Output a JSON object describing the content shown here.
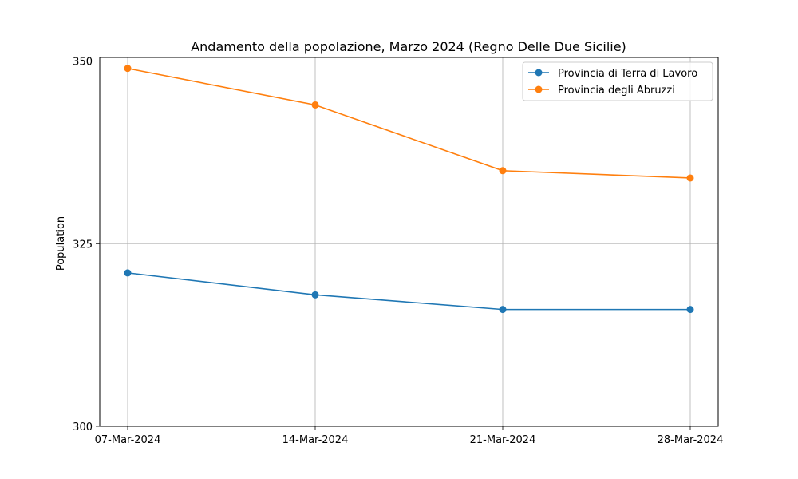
{
  "chart_data": {
    "type": "line",
    "title": "Andamento della popolazione, Marzo 2024 (Regno Delle Due Sicilie)",
    "xlabel": "",
    "ylabel": "Population",
    "categories": [
      "07-Mar-2024",
      "14-Mar-2024",
      "21-Mar-2024",
      "28-Mar-2024"
    ],
    "yticks": [
      "300",
      "325",
      "350"
    ],
    "ylim": [
      300,
      350.5
    ],
    "grid": true,
    "legend_position": "top-right",
    "series": [
      {
        "name": "Provincia di Terra di Lavoro",
        "color": "#1f77b4",
        "values": [
          321,
          318,
          316,
          316
        ]
      },
      {
        "name": "Provincia degli Abruzzi",
        "color": "#ff7f0e",
        "values": [
          349,
          344,
          335,
          334
        ]
      }
    ]
  }
}
